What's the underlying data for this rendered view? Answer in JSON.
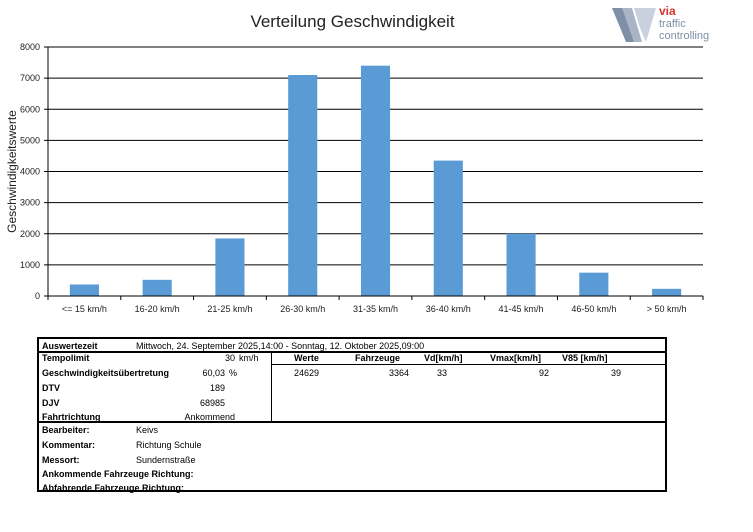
{
  "chart_data": {
    "type": "bar",
    "title": "Verteilung Geschwindigkeit",
    "ylabel": "Geschwindigkeitswerte",
    "xlabel": "",
    "ylim": [
      0,
      8000
    ],
    "yticks": [
      0,
      1000,
      2000,
      3000,
      4000,
      5000,
      6000,
      7000,
      8000
    ],
    "grid": true,
    "bar_color": "#5b9bd5",
    "categories": [
      "<= 15 km/h",
      "16-20 km/h",
      "21-25 km/h",
      "26-30 km/h",
      "31-35 km/h",
      "36-40 km/h",
      "41-45 km/h",
      "46-50 km/h",
      "> 50 km/h"
    ],
    "values": [
      370,
      520,
      1850,
      7100,
      7400,
      4350,
      2000,
      750,
      230
    ]
  },
  "logo": {
    "line1": "via",
    "line2": "traffic",
    "line3": "controlling"
  },
  "info": {
    "auswertezeit_label": "Auswertezeit",
    "auswertezeit_value": "Mittwoch, 24. September 2025,14:00  -  Sonntag, 12. Oktober 2025,09:00",
    "left_rows": [
      {
        "label": "Tempolimit",
        "value": "30",
        "unit": "km/h"
      },
      {
        "label": "Geschwindigkeitsübertretung",
        "value": "60,03",
        "unit": "%"
      },
      {
        "label": "DTV",
        "value": "189",
        "unit": ""
      },
      {
        "label": "DJV",
        "value": "68985",
        "unit": ""
      },
      {
        "label": "Fahrtrichtung",
        "value": "Ankommend",
        "unit": ""
      }
    ],
    "stats_headers": [
      "Werte",
      "Fahrzeuge",
      "Vd[km/h]",
      "Vmax[km/h]",
      "V85 [km/h]"
    ],
    "stats_values": [
      "24629",
      "3364",
      "33",
      "92",
      "39"
    ],
    "bottom_rows": [
      {
        "label": "Bearbeiter:",
        "value": "Keivs"
      },
      {
        "label": "Kommentar:",
        "value": "Richtung Schule"
      },
      {
        "label": "Messort:",
        "value": "Sundernstraße"
      },
      {
        "label": "Ankommende Fahrzeuge Richtung:",
        "value": ""
      },
      {
        "label": "Abfahrende Fahrzeuge Richtung:",
        "value": ""
      }
    ]
  }
}
